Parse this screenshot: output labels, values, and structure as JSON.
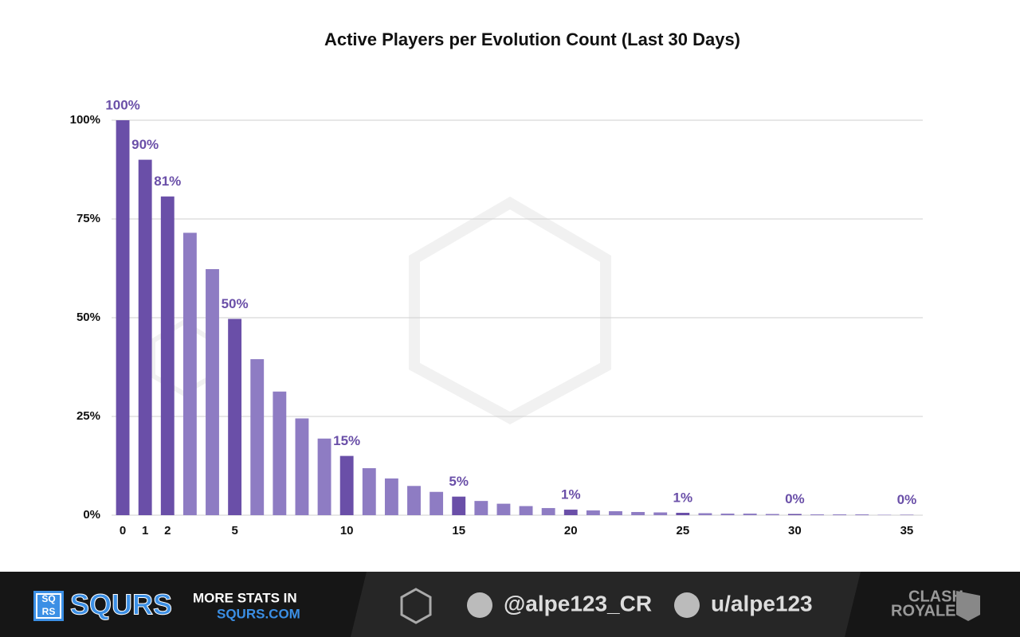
{
  "chart_data": {
    "type": "bar",
    "title": "Active Players per Evolution Count (Last 30 Days)",
    "x": [
      0,
      1,
      2,
      3,
      4,
      5,
      6,
      7,
      8,
      9,
      10,
      11,
      12,
      13,
      14,
      15,
      16,
      17,
      18,
      19,
      20,
      21,
      22,
      23,
      24,
      25,
      26,
      27,
      28,
      29,
      30,
      31,
      32,
      33,
      34,
      35
    ],
    "values": [
      100,
      90,
      80.7,
      71.5,
      62.3,
      49.7,
      39.5,
      31.3,
      24.5,
      19.4,
      15,
      11.9,
      9.3,
      7.4,
      5.9,
      4.7,
      3.6,
      2.9,
      2.3,
      1.8,
      1.4,
      1.2,
      1.0,
      0.8,
      0.7,
      0.6,
      0.5,
      0.4,
      0.4,
      0.3,
      0.3,
      0.2,
      0.2,
      0.2,
      0.1,
      0.1
    ],
    "value_labels": [
      "100%",
      "90%",
      "81%",
      null,
      null,
      "50%",
      null,
      null,
      null,
      null,
      "15%",
      null,
      null,
      null,
      null,
      "5%",
      null,
      null,
      null,
      null,
      "1%",
      null,
      null,
      null,
      null,
      "1%",
      null,
      null,
      null,
      null,
      "0%",
      null,
      null,
      null,
      null,
      "0%"
    ],
    "color": "#8e7cc3",
    "highlight_color": "#6a4fa8",
    "xlim": [
      -0.5,
      35.5
    ],
    "xticks": [
      0,
      1,
      2,
      5,
      10,
      15,
      20,
      25,
      30,
      35
    ],
    "ylim": [
      0,
      100
    ],
    "yticks": [
      {
        "value": 0,
        "label": "0%"
      },
      {
        "value": 25,
        "label": "25%"
      },
      {
        "value": 50,
        "label": "50%"
      },
      {
        "value": 75,
        "label": "75%"
      },
      {
        "value": 100,
        "label": "100%"
      }
    ],
    "grid": true
  },
  "footer": {
    "logo_top": "SQ",
    "logo_bottom": "RS",
    "brand": "SQURS",
    "promo": "MORE STATS IN",
    "site": "SQURS.COM",
    "twitter": "@alpe123_CR",
    "reddit": "u/alpe123",
    "game_top": "CLASH",
    "game_bottom": "ROYALE"
  }
}
